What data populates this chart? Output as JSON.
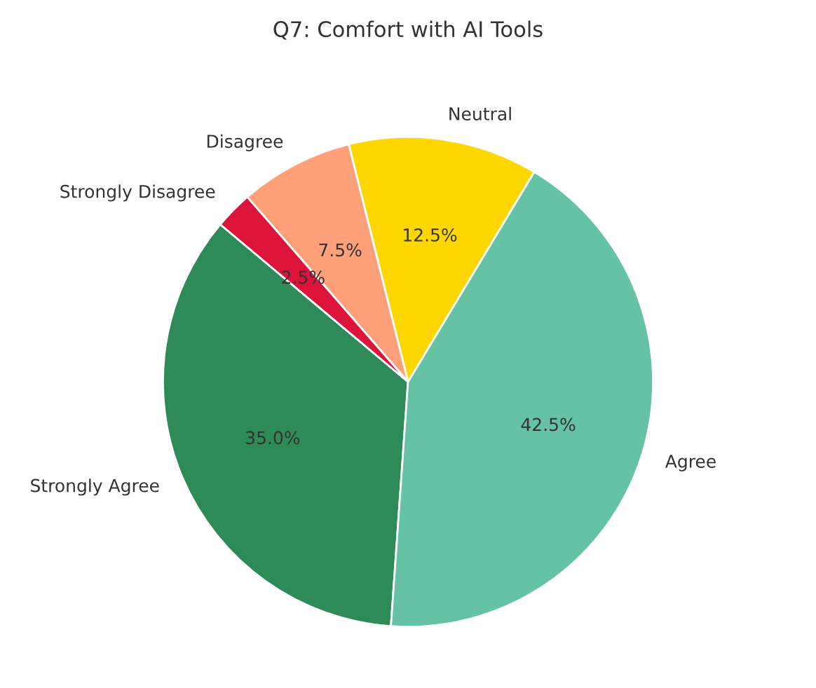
{
  "chart_data": {
    "type": "pie",
    "title": "Q7: Comfort with AI Tools",
    "categories": [
      "Strongly Agree",
      "Agree",
      "Neutral",
      "Disagree",
      "Strongly Disagree"
    ],
    "values": [
      35.0,
      42.5,
      12.5,
      7.5,
      2.5
    ],
    "value_labels": [
      "35.0%",
      "42.5%",
      "12.5%",
      "7.5%",
      "2.5%"
    ],
    "colors": [
      "#2e8b57",
      "#66c2a5",
      "#ffd700",
      "#ffa07a",
      "#dc143c"
    ],
    "legend": false
  }
}
